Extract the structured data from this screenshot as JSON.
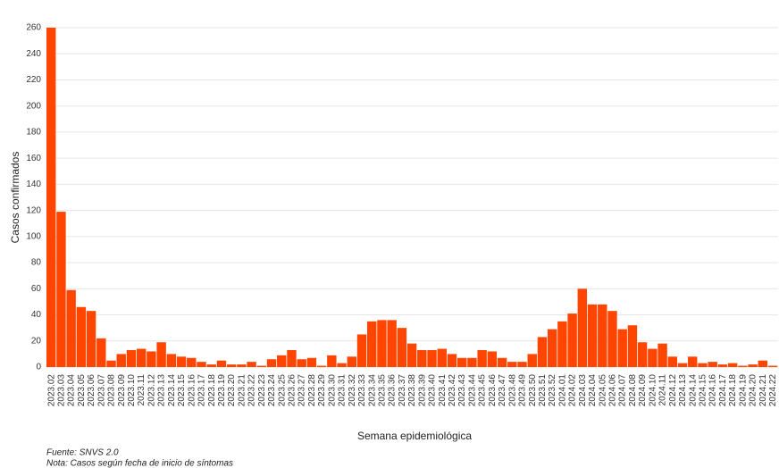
{
  "chart_data": {
    "type": "bar",
    "x_label": "Semana epidemiológica",
    "y_label": "Casos confirmados",
    "source": "Fuente: SNVS 2.0",
    "note": "Nota: Casos según fecha de inicio de síntomas",
    "color": "#ff4500",
    "grid": true,
    "ylim": [
      0,
      260
    ],
    "yticks": [
      0,
      20,
      40,
      60,
      80,
      100,
      120,
      140,
      160,
      180,
      200,
      220,
      240,
      260
    ],
    "categories": [
      "2023.02",
      "2023.03",
      "2023.04",
      "2023.05",
      "2023.06",
      "2023.07",
      "2023.08",
      "2023.09",
      "2023.10",
      "2023.11",
      "2023.12",
      "2023.13",
      "2023.14",
      "2023.15",
      "2023.16",
      "2023.17",
      "2023.18",
      "2023.19",
      "2023.20",
      "2023.21",
      "2023.22",
      "2023.23",
      "2023.24",
      "2023.25",
      "2023.26",
      "2023.27",
      "2023.28",
      "2023.29",
      "2023.30",
      "2023.31",
      "2023.32",
      "2023.33",
      "2023.34",
      "2023.35",
      "2023.36",
      "2023.37",
      "2023.38",
      "2023.39",
      "2023.40",
      "2023.41",
      "2023.42",
      "2023.43",
      "2023.44",
      "2023.45",
      "2023.46",
      "2023.47",
      "2023.48",
      "2023.49",
      "2023.50",
      "2023.51",
      "2023.52",
      "2024.01",
      "2024.02",
      "2024.03",
      "2024.04",
      "2024.05",
      "2024.06",
      "2024.07",
      "2024.08",
      "2024.09",
      "2024.10",
      "2024.11",
      "2024.12",
      "2024.13",
      "2024.14",
      "2024.15",
      "2024.16",
      "2024.17",
      "2024.18",
      "2024.19",
      "2024.20",
      "2024.21",
      "2024.22"
    ],
    "values": [
      260,
      119,
      59,
      46,
      43,
      22,
      5,
      10,
      13,
      14,
      12,
      19,
      10,
      8,
      7,
      4,
      2,
      5,
      2,
      2,
      4,
      1,
      6,
      9,
      13,
      6,
      7,
      1,
      9,
      3,
      8,
      25,
      35,
      36,
      36,
      30,
      18,
      13,
      13,
      14,
      10,
      7,
      7,
      13,
      12,
      7,
      4,
      4,
      10,
      23,
      29,
      35,
      41,
      60,
      48,
      48,
      43,
      29,
      32,
      19,
      14,
      18,
      8,
      3,
      8,
      3,
      4,
      2,
      3,
      1,
      2,
      5,
      1
    ]
  }
}
